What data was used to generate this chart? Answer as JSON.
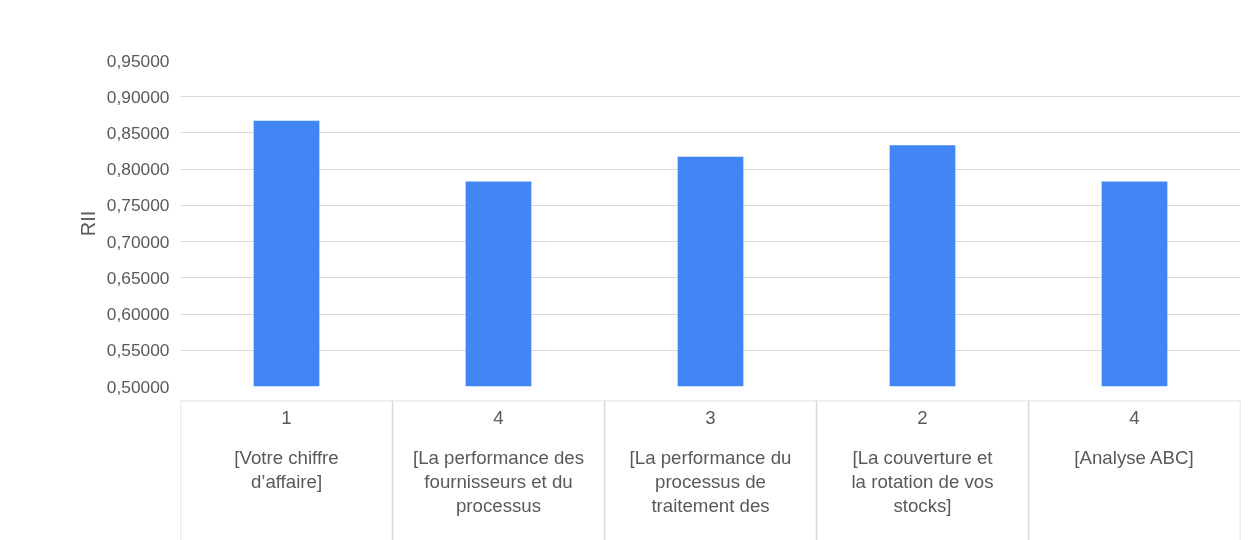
{
  "chart_data": {
    "type": "bar",
    "ylabel": "RII",
    "categories": [
      "[Votre chiffre d’affaire]",
      "[La performance des fournisseurs et du processus",
      "[La performance du processus de traitement des",
      "[La couverture et la rotation de vos stocks]",
      "[Analyse ABC]"
    ],
    "values": [
      0.867,
      0.783,
      0.817,
      0.833,
      0.783
    ],
    "color": "#4285f4",
    "ylim": [
      0.5,
      0.95
    ],
    "yticks": [
      {
        "value": 0.5,
        "label": "0,50000"
      },
      {
        "value": 0.55,
        "label": "0,55000"
      },
      {
        "value": 0.6,
        "label": "0,60000"
      },
      {
        "value": 0.65,
        "label": "0,65000"
      },
      {
        "value": 0.7,
        "label": "0,70000"
      },
      {
        "value": 0.75,
        "label": "0,75000"
      },
      {
        "value": 0.8,
        "label": "0,80000"
      },
      {
        "value": 0.85,
        "label": "0,85000"
      },
      {
        "value": 0.9,
        "label": "0,90000"
      },
      {
        "value": 0.95,
        "label": "0,95000"
      }
    ],
    "annotations": [
      "1",
      "4",
      "3",
      "2",
      "4"
    ],
    "grid": "y"
  }
}
